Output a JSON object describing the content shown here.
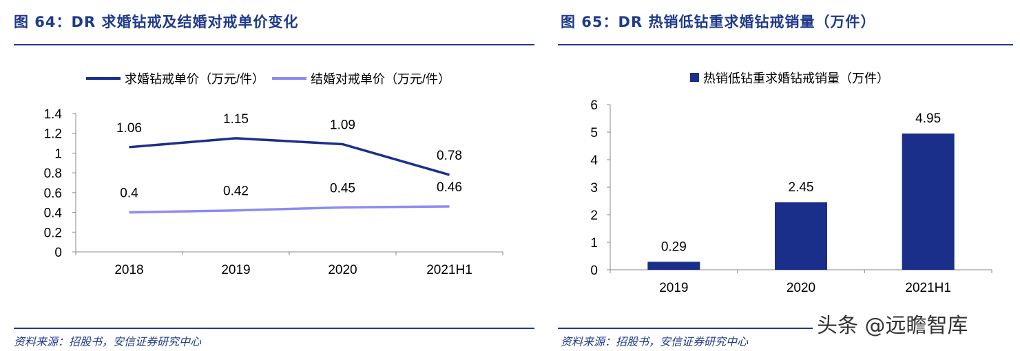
{
  "left": {
    "title": "图 64：DR 求婚钻戒及结婚对戒单价变化",
    "source": "资料来源：招股书，安信证券研究中心"
  },
  "right": {
    "title": "图 65：DR 热销低钻重求婚钻戒销量（万件）",
    "source": "资料来源：招股书，安信证券研究中心"
  },
  "watermark": "头条 @远瞻智库",
  "chart_data": [
    {
      "type": "line",
      "categories": [
        "2018",
        "2019",
        "2020",
        "2021H1"
      ],
      "series": [
        {
          "name": "求婚钻戒单价（万元/件）",
          "values": [
            1.06,
            1.15,
            1.09,
            0.78
          ],
          "color": "#1a2f8a"
        },
        {
          "name": "结婚对戒单价（万元/件）",
          "values": [
            0.4,
            0.42,
            0.45,
            0.46
          ],
          "color": "#8c8cf0"
        }
      ],
      "yticks": [
        "0",
        "0.2",
        "0.4",
        "0.6",
        "0.8",
        "1",
        "1.2",
        "1.4"
      ],
      "ylim": [
        0,
        1.4
      ],
      "legend": "top",
      "grid": false
    },
    {
      "type": "bar",
      "categories": [
        "2019",
        "2020",
        "2021H1"
      ],
      "series": [
        {
          "name": "热销低钻重求婚钻戒销量（万件）",
          "values": [
            0.29,
            2.45,
            4.95
          ],
          "color": "#1a2f8a"
        }
      ],
      "yticks": [
        "0",
        "1",
        "2",
        "3",
        "4",
        "5",
        "6"
      ],
      "ylim": [
        0,
        6
      ],
      "legend": "top",
      "grid": false
    }
  ]
}
